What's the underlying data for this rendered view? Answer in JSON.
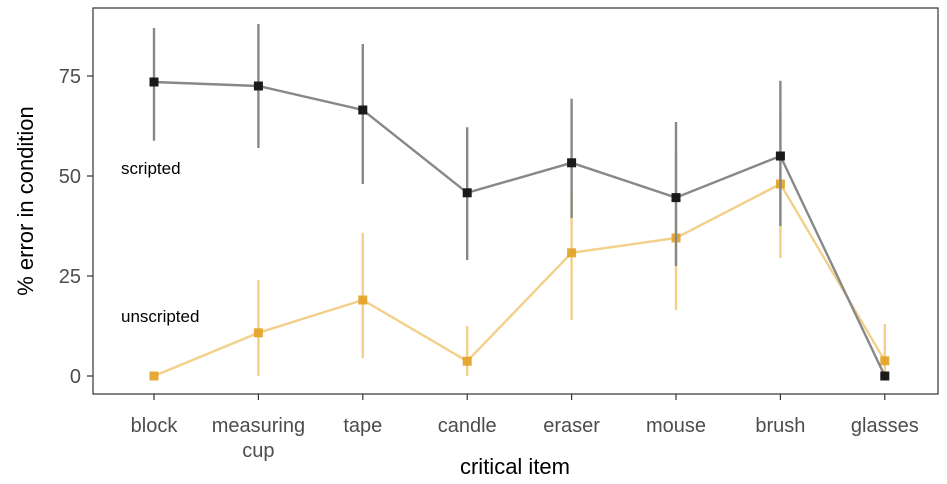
{
  "chart_data": {
    "type": "line",
    "xlabel": "critical item",
    "ylabel": "% error in condition",
    "categories": [
      [
        "block"
      ],
      [
        "measuring",
        "cup"
      ],
      [
        "tape"
      ],
      [
        "candle"
      ],
      [
        "eraser"
      ],
      [
        "mouse"
      ],
      [
        "brush"
      ],
      [
        "glasses"
      ]
    ],
    "yticks": [
      0,
      25,
      50,
      75
    ],
    "ylim": [
      -4.5,
      92
    ],
    "grid": false,
    "series": [
      {
        "name": "scripted",
        "color": "#888888",
        "marker_color": "#1a1a1a",
        "values": [
          73.5,
          72.5,
          66.5,
          45.8,
          53.3,
          44.6,
          55.0,
          0
        ],
        "err_low": [
          58.8,
          57.0,
          48.0,
          29.0,
          39.5,
          27.5,
          37.5,
          0
        ],
        "err_high": [
          87.0,
          88.0,
          83.0,
          62.2,
          69.3,
          63.5,
          73.8,
          0
        ]
      },
      {
        "name": "unscripted",
        "color": "#f2d08a",
        "marker_color": "#e3a124",
        "values": [
          0,
          10.8,
          19.0,
          3.7,
          30.8,
          34.5,
          48.0,
          3.8
        ],
        "err_low": [
          0,
          0,
          4.5,
          0,
          14.0,
          16.5,
          29.5,
          0
        ],
        "err_high": [
          0,
          24.0,
          35.8,
          12.5,
          47.0,
          56.0,
          66.5,
          13.0
        ]
      }
    ]
  }
}
